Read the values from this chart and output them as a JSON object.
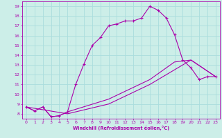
{
  "bg_color": "#cceee8",
  "line_color": "#aa00aa",
  "grid_color": "#aadddd",
  "xlabel": "Windchill (Refroidissement éolien,°C)",
  "xlim": [
    -0.5,
    23.5
  ],
  "ylim": [
    7.5,
    19.5
  ],
  "xticks": [
    0,
    1,
    2,
    3,
    4,
    5,
    6,
    7,
    8,
    9,
    10,
    11,
    12,
    13,
    14,
    15,
    16,
    17,
    18,
    19,
    20,
    21,
    22,
    23
  ],
  "yticks": [
    8,
    9,
    10,
    11,
    12,
    13,
    14,
    15,
    16,
    17,
    18,
    19
  ],
  "series1_x": [
    0,
    1,
    2,
    3,
    4,
    5,
    6,
    7,
    8,
    9,
    10,
    11,
    12,
    13,
    14,
    15,
    16,
    17,
    18,
    19,
    20,
    21,
    22,
    23
  ],
  "series1_y": [
    8.7,
    8.3,
    8.7,
    7.7,
    7.8,
    8.2,
    11.0,
    13.1,
    15.0,
    15.8,
    17.0,
    17.2,
    17.5,
    17.5,
    17.8,
    19.0,
    18.6,
    17.8,
    16.1,
    13.5,
    12.7,
    11.5,
    11.8,
    11.8
  ],
  "series2_x": [
    0,
    1,
    2,
    3,
    4,
    5,
    10,
    15,
    18,
    20,
    23
  ],
  "series2_y": [
    8.7,
    8.3,
    8.7,
    7.7,
    7.8,
    8.2,
    9.5,
    11.5,
    13.3,
    13.5,
    11.8
  ],
  "series3_x": [
    0,
    5,
    10,
    15,
    20,
    23
  ],
  "series3_y": [
    8.7,
    8.0,
    9.0,
    11.0,
    13.5,
    11.8
  ]
}
